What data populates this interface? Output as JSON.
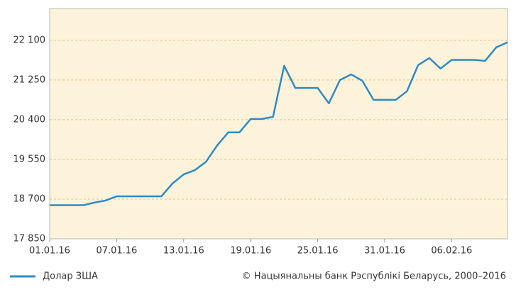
{
  "chart_data": {
    "type": "line",
    "x": [
      "01.01.16",
      "02.01.16",
      "03.01.16",
      "04.01.16",
      "05.01.16",
      "06.01.16",
      "07.01.16",
      "08.01.16",
      "09.01.16",
      "10.01.16",
      "11.01.16",
      "12.01.16",
      "13.01.16",
      "14.01.16",
      "15.01.16",
      "16.01.16",
      "17.01.16",
      "18.01.16",
      "19.01.16",
      "20.01.16",
      "21.01.16",
      "22.01.16",
      "23.01.16",
      "24.01.16",
      "25.01.16",
      "26.01.16",
      "27.01.16",
      "28.01.16",
      "29.01.16",
      "30.01.16",
      "31.01.16",
      "01.02.16",
      "02.02.16",
      "03.02.16",
      "04.02.16",
      "05.02.16",
      "06.02.16",
      "07.02.16",
      "08.02.16",
      "09.02.16",
      "10.02.16",
      "11.02.16"
    ],
    "series": [
      {
        "name": "Долар ЗША",
        "color": "#2f8ac6",
        "values": [
          18570,
          18570,
          18570,
          18570,
          18625,
          18670,
          18760,
          18760,
          18760,
          18760,
          18760,
          19035,
          19230,
          19320,
          19500,
          19850,
          20130,
          20130,
          20415,
          20415,
          20460,
          21555,
          21080,
          21080,
          21080,
          20750,
          21250,
          21370,
          21235,
          20825,
          20825,
          20825,
          21010,
          21570,
          21720,
          21495,
          21680,
          21680,
          21680,
          21660,
          21950,
          22055
        ]
      }
    ],
    "xlim": [
      "01.01.16",
      "11.02.16"
    ],
    "xticks": [
      "01.01.16",
      "07.01.16",
      "13.01.16",
      "19.01.16",
      "25.01.16",
      "31.01.16",
      "06.02.16"
    ],
    "ylim": [
      17850,
      22780
    ],
    "yticks": [
      {
        "value": 17850,
        "label": "17 850"
      },
      {
        "value": 18700,
        "label": "18 700"
      },
      {
        "value": 19550,
        "label": "19 550"
      },
      {
        "value": 20400,
        "label": "20 400"
      },
      {
        "value": 21250,
        "label": "21 250"
      },
      {
        "value": 22100,
        "label": "22 100"
      }
    ],
    "grid": true,
    "source": "© Нацыянальны банк Рэспублікі Беларусь, 2000–2016"
  }
}
